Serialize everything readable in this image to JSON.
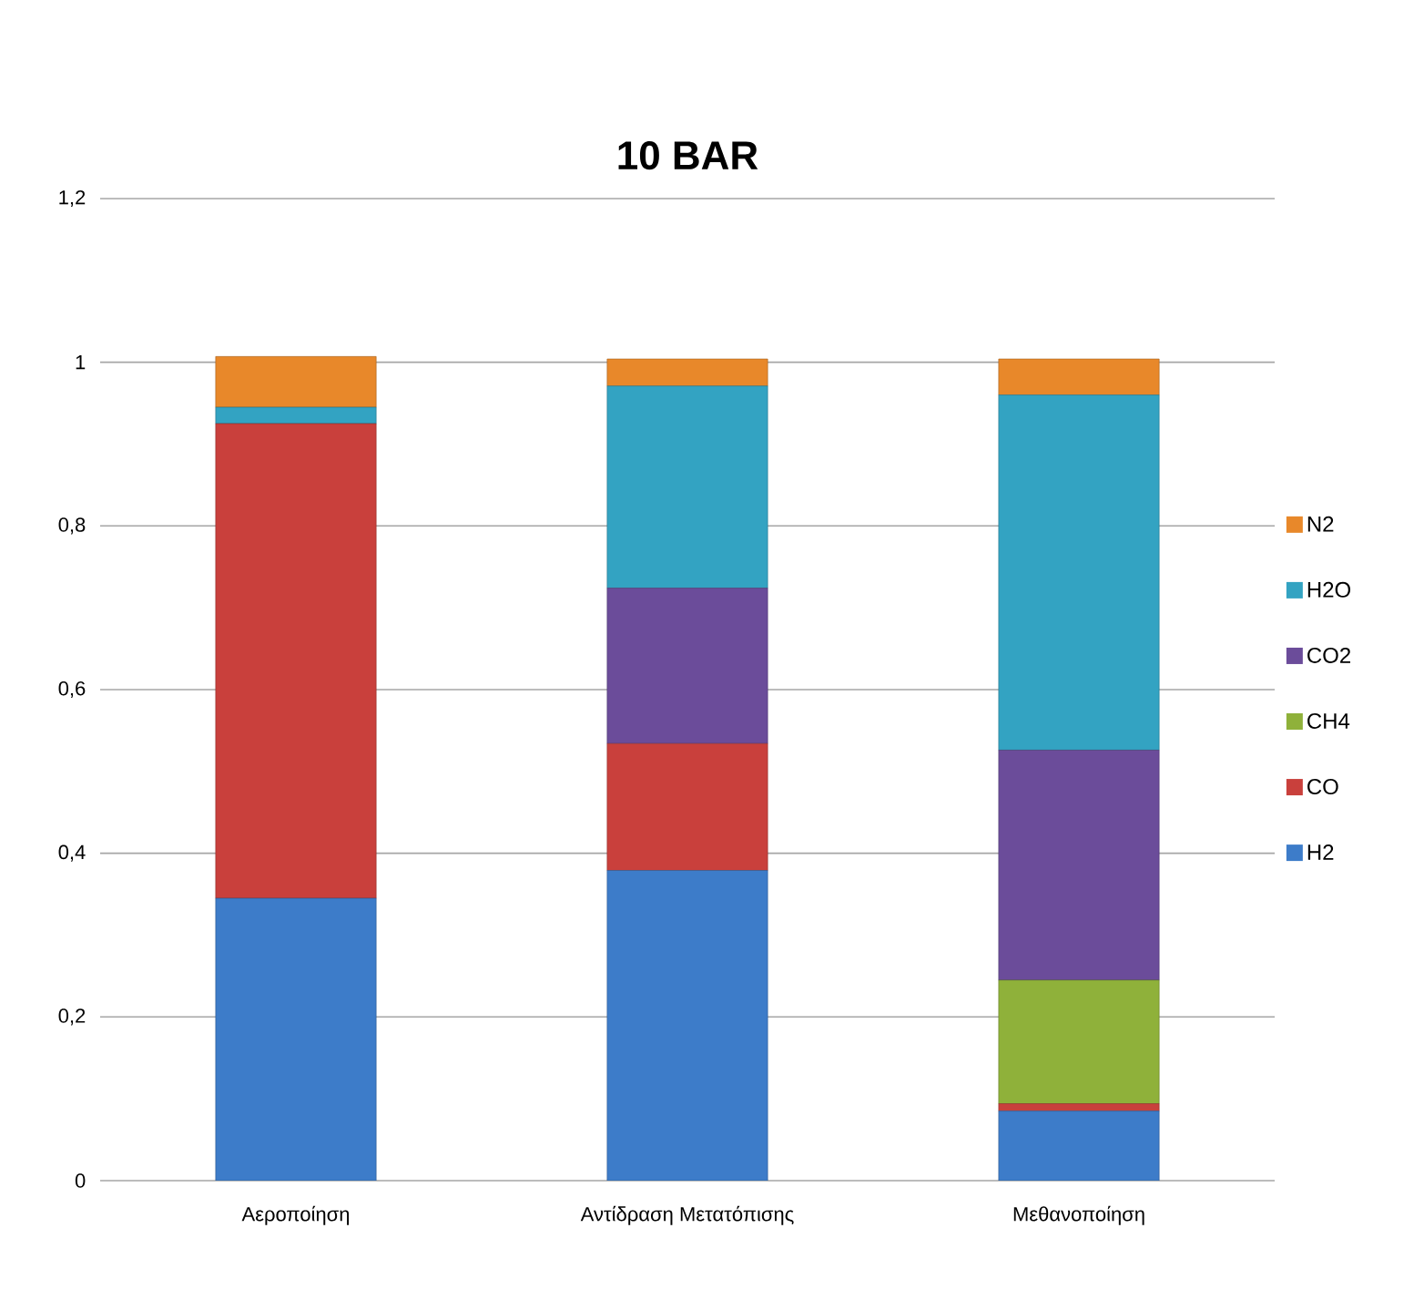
{
  "chart_data": {
    "type": "bar",
    "title": "10 BAR",
    "stacked": true,
    "categories": [
      "Αεροποίηση",
      "Αντίδραση Μετατόπισης",
      "Μεθανοποίηση"
    ],
    "series": [
      {
        "name": "H2",
        "color": "#3d7cc9",
        "values": [
          0.345,
          0.379,
          0.085
        ]
      },
      {
        "name": "CO",
        "color": "#c9403c",
        "values": [
          0.58,
          0.155,
          0.009
        ]
      },
      {
        "name": "CH4",
        "color": "#8fb13a",
        "values": [
          0,
          0,
          0.151
        ]
      },
      {
        "name": "CO2",
        "color": "#6b4c9a",
        "values": [
          0,
          0.19,
          0.281
        ]
      },
      {
        "name": "H2O",
        "color": "#33a3c2",
        "values": [
          0.02,
          0.247,
          0.434
        ]
      },
      {
        "name": "N2",
        "color": "#e8882a",
        "values": [
          0.062,
          0.033,
          0.044
        ]
      }
    ],
    "ylim": [
      0,
      1.2
    ],
    "yticks": [
      {
        "value": 0,
        "label": "0"
      },
      {
        "value": 0.2,
        "label": "0,2"
      },
      {
        "value": 0.4,
        "label": "0,4"
      },
      {
        "value": 0.6,
        "label": "0,6"
      },
      {
        "value": 0.8,
        "label": "0,8"
      },
      {
        "value": 1,
        "label": "1"
      },
      {
        "value": 1.2,
        "label": "1,2"
      }
    ],
    "grid": "y",
    "legend": "right"
  }
}
